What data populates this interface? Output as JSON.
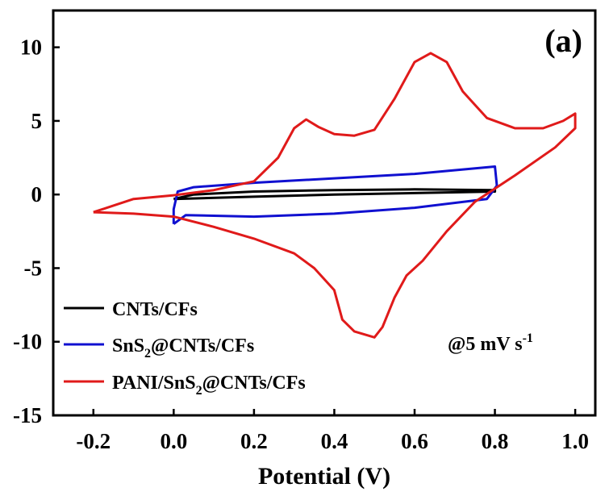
{
  "chart_data": {
    "type": "line",
    "title": "",
    "panel_label": "(a)",
    "xlabel": "Potential (V)",
    "ylabel": "",
    "xlim": [
      -0.3,
      1.05
    ],
    "ylim": [
      -15,
      12.5
    ],
    "x_ticks": [
      -0.2,
      0.0,
      0.2,
      0.4,
      0.6,
      0.8,
      1.0
    ],
    "x_tick_labels": [
      "-0.2",
      "0.0",
      "0.2",
      "0.4",
      "0.6",
      "0.8",
      "1.0"
    ],
    "y_ticks": [
      -15,
      -10,
      -5,
      0,
      5,
      10
    ],
    "y_tick_labels": [
      "-15",
      "-10",
      "-5",
      "0",
      "5",
      "10"
    ],
    "grid": false,
    "legend_position": "bottom-left",
    "annotation": {
      "main": "@5 mV s",
      "sup": "-1"
    },
    "series": [
      {
        "name": "CNTs/CFs",
        "legend_parts": [
          {
            "t": "CNTs/CFs"
          }
        ],
        "color": "#000000",
        "points": [
          [
            0.0,
            -0.3
          ],
          [
            0.2,
            -0.15
          ],
          [
            0.4,
            0.0
          ],
          [
            0.6,
            0.1
          ],
          [
            0.8,
            0.2
          ],
          [
            0.8,
            0.3
          ],
          [
            0.6,
            0.35
          ],
          [
            0.4,
            0.3
          ],
          [
            0.2,
            0.2
          ],
          [
            0.05,
            0.0
          ],
          [
            0.0,
            -0.3
          ]
        ]
      },
      {
        "name": "SnS2@CNTs/CFs",
        "legend_parts": [
          {
            "t": "SnS"
          },
          {
            "t": "2",
            "sub": true
          },
          {
            "t": "@CNTs/CFs"
          }
        ],
        "color": "#1010d0",
        "points": [
          [
            0.0,
            -2.0
          ],
          [
            0.0,
            -1.0
          ],
          [
            0.01,
            0.2
          ],
          [
            0.05,
            0.5
          ],
          [
            0.2,
            0.8
          ],
          [
            0.4,
            1.1
          ],
          [
            0.6,
            1.4
          ],
          [
            0.8,
            1.9
          ],
          [
            0.805,
            0.6
          ],
          [
            0.78,
            -0.3
          ],
          [
            0.6,
            -0.9
          ],
          [
            0.4,
            -1.3
          ],
          [
            0.2,
            -1.5
          ],
          [
            0.03,
            -1.4
          ],
          [
            0.0,
            -2.0
          ]
        ]
      },
      {
        "name": "PANI/SnS2@CNTs/CFs",
        "legend_parts": [
          {
            "t": "PANI/SnS"
          },
          {
            "t": "2",
            "sub": true
          },
          {
            "t": "@CNTs/CFs"
          }
        ],
        "color": "#e01a1a",
        "points": [
          [
            -0.2,
            -1.2
          ],
          [
            -0.1,
            -0.3
          ],
          [
            0.0,
            -0.05
          ],
          [
            0.1,
            0.3
          ],
          [
            0.2,
            0.9
          ],
          [
            0.26,
            2.5
          ],
          [
            0.3,
            4.5
          ],
          [
            0.33,
            5.1
          ],
          [
            0.36,
            4.6
          ],
          [
            0.4,
            4.1
          ],
          [
            0.45,
            4.0
          ],
          [
            0.5,
            4.4
          ],
          [
            0.55,
            6.5
          ],
          [
            0.6,
            9.0
          ],
          [
            0.64,
            9.6
          ],
          [
            0.68,
            9.0
          ],
          [
            0.72,
            7.0
          ],
          [
            0.78,
            5.2
          ],
          [
            0.85,
            4.5
          ],
          [
            0.92,
            4.5
          ],
          [
            0.97,
            5.0
          ],
          [
            1.0,
            5.5
          ],
          [
            1.0,
            4.5
          ],
          [
            0.95,
            3.2
          ],
          [
            0.85,
            1.3
          ],
          [
            0.75,
            -0.5
          ],
          [
            0.68,
            -2.5
          ],
          [
            0.62,
            -4.5
          ],
          [
            0.58,
            -5.5
          ],
          [
            0.55,
            -7.0
          ],
          [
            0.52,
            -9.0
          ],
          [
            0.5,
            -9.7
          ],
          [
            0.45,
            -9.3
          ],
          [
            0.42,
            -8.5
          ],
          [
            0.4,
            -6.5
          ],
          [
            0.35,
            -5.0
          ],
          [
            0.3,
            -4.0
          ],
          [
            0.2,
            -3.0
          ],
          [
            0.1,
            -2.2
          ],
          [
            0.0,
            -1.5
          ],
          [
            -0.1,
            -1.3
          ],
          [
            -0.2,
            -1.2
          ]
        ]
      }
    ]
  }
}
